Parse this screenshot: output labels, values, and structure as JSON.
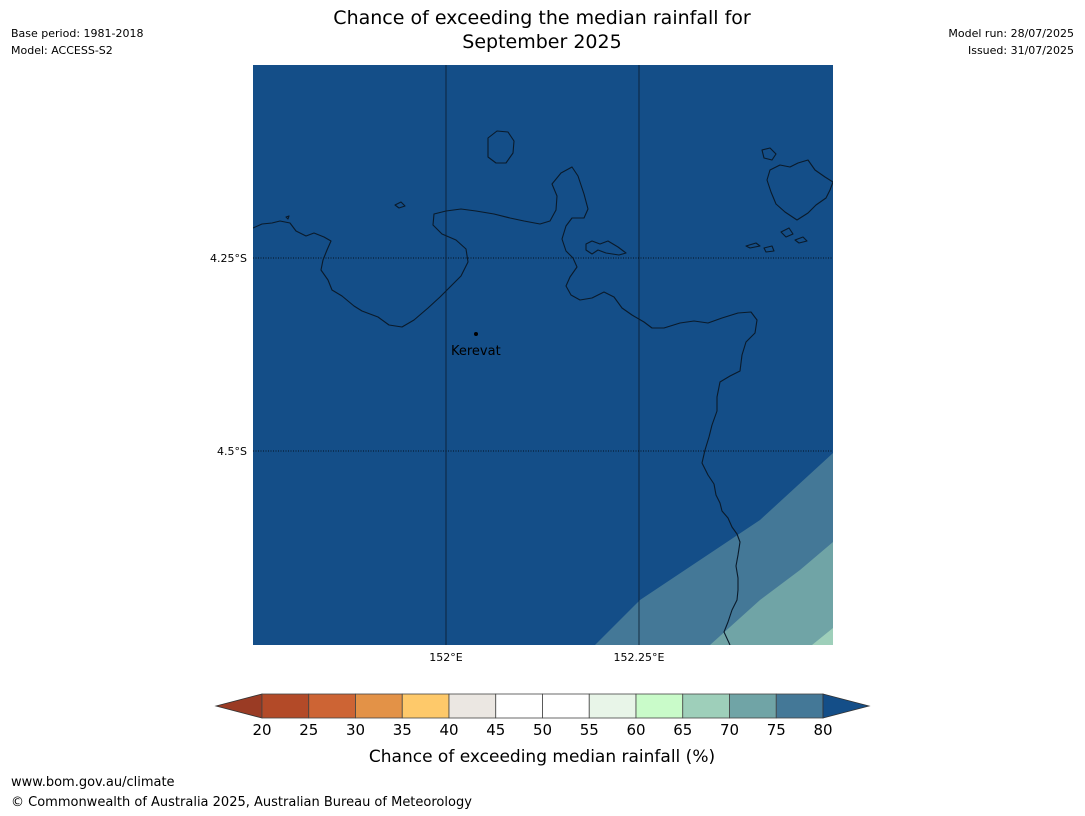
{
  "header": {
    "title_line1": "Chance of exceeding the median rainfall for",
    "title_line2": "September 2025",
    "base_period": "Base period: 1981-2018",
    "model": "Model: ACCESS-S2",
    "model_run": "Model run: 28/07/2025",
    "issued": "Issued: 31/07/2025"
  },
  "map": {
    "place_label": "Kerevat",
    "lat_labels": [
      "4.25°S",
      "4.5°S"
    ],
    "lon_labels": [
      "152°E",
      "152.25°E"
    ],
    "colors": {
      "background": "#144e88",
      "band_70_75": "#447897",
      "band_65_70": "#70a4a6",
      "band_60_65": "#9ecfba",
      "coast": "#0a1a2a"
    }
  },
  "colorbar": {
    "label": "Chance of exceeding median rainfall (%)",
    "ticks": [
      "20",
      "25",
      "30",
      "35",
      "40",
      "45",
      "50",
      "55",
      "60",
      "65",
      "70",
      "75",
      "80"
    ],
    "under_color": "#9a3b24",
    "over_color": "#144e88",
    "colors": [
      "#b34a28",
      "#cd6434",
      "#e39247",
      "#fec96a",
      "#ebe7e2",
      "#ffffff",
      "#ffffff",
      "#e8f5e8",
      "#c9fbc9",
      "#9ecfba",
      "#70a4a6",
      "#447897"
    ]
  },
  "footer": {
    "url": "www.bom.gov.au/climate",
    "copyright": "© Commonwealth of Australia 2025, Australian Bureau of Meteorology"
  }
}
